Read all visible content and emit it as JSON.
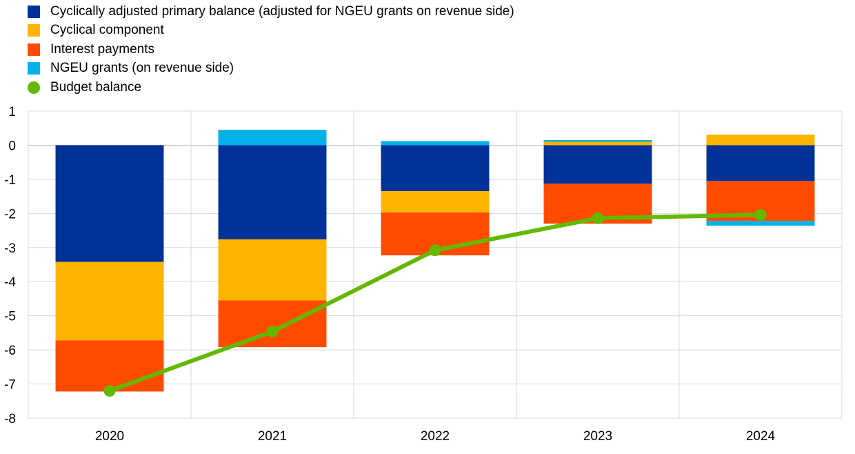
{
  "chart_data": {
    "type": "bar",
    "stacked": true,
    "categories": [
      "2020",
      "2021",
      "2022",
      "2023",
      "2024"
    ],
    "ylim": [
      -8,
      1
    ],
    "yticks": [
      1,
      0,
      -1,
      -2,
      -3,
      -4,
      -5,
      -6,
      -7,
      -8
    ],
    "grid": true,
    "legend_position": "top-left",
    "series": [
      {
        "name": "Cyclically adjusted primary balance (adjusted for NGEU grants on revenue side)",
        "kind": "bar",
        "color": "#003299",
        "values": [
          -3.42,
          -2.76,
          -1.35,
          -1.13,
          -1.05
        ]
      },
      {
        "name": "Cyclical component",
        "kind": "bar",
        "color": "#FFB400",
        "values": [
          -2.3,
          -1.79,
          -0.62,
          0.1,
          0.31
        ]
      },
      {
        "name": "Interest payments",
        "kind": "bar",
        "color": "#FF4B00",
        "values": [
          -1.5,
          -1.37,
          -1.26,
          -1.17,
          -1.17
        ]
      },
      {
        "name": "NGEU grants (on revenue side)",
        "kind": "bar",
        "color": "#00B1EA",
        "values": [
          0.0,
          0.45,
          0.12,
          0.05,
          -0.14
        ]
      },
      {
        "name": "Budget balance",
        "kind": "line",
        "color": "#65B800",
        "values": [
          -7.2,
          -5.46,
          -3.08,
          -2.14,
          -2.04
        ]
      }
    ]
  }
}
